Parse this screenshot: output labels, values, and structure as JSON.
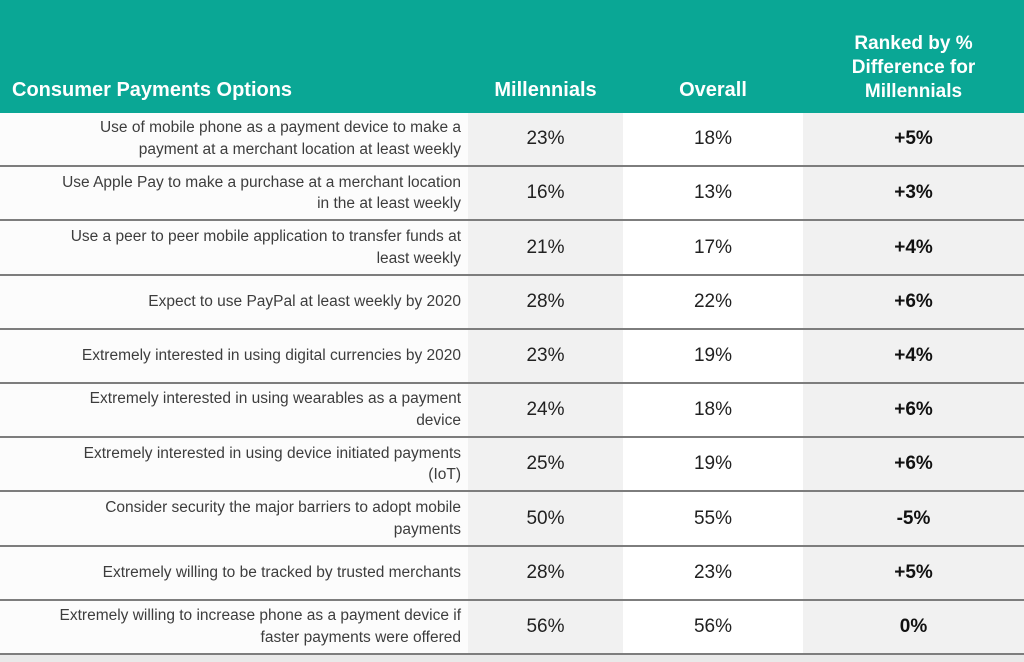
{
  "header": {
    "col1": "Consumer Payments Options",
    "col2": "Millennials",
    "col3": "Overall",
    "col4": "Ranked by % Difference for Millennials"
  },
  "colors": {
    "header_bg": "#0aa795",
    "header_text": "#ffffff",
    "alt_column_bg": "#f1f1f1",
    "separator": "#7d7d7d"
  },
  "chart_data": {
    "type": "table",
    "title": "Consumer Payments Options",
    "columns": [
      "Consumer Payments Options",
      "Millennials",
      "Overall",
      "Ranked by % Difference for Millennials"
    ],
    "rows": [
      {
        "option": "Use of mobile phone as a payment device to make a payment at a merchant location at least weekly",
        "millennials": "23%",
        "overall": "18%",
        "difference": "+5%"
      },
      {
        "option": "Use Apple Pay to make a purchase at a merchant location in the at least weekly",
        "millennials": "16%",
        "overall": "13%",
        "difference": "+3%"
      },
      {
        "option": "Use a peer to peer mobile application to transfer funds at least weekly",
        "millennials": "21%",
        "overall": "17%",
        "difference": "+4%"
      },
      {
        "option": "Expect to use PayPal at least weekly by 2020",
        "millennials": "28%",
        "overall": "22%",
        "difference": "+6%"
      },
      {
        "option": "Extremely interested in using digital currencies by 2020",
        "millennials": "23%",
        "overall": "19%",
        "difference": "+4%"
      },
      {
        "option": "Extremely interested in using wearables as a payment device",
        "millennials": "24%",
        "overall": "18%",
        "difference": "+6%"
      },
      {
        "option": "Extremely interested in using device initiated payments (IoT)",
        "millennials": "25%",
        "overall": "19%",
        "difference": "+6%"
      },
      {
        "option": "Consider security the major barriers to adopt mobile payments",
        "millennials": "50%",
        "overall": "55%",
        "difference": "-5%"
      },
      {
        "option": "Extremely willing to be tracked by trusted merchants",
        "millennials": "28%",
        "overall": "23%",
        "difference": "+5%"
      },
      {
        "option": "Extremely willing to increase phone as a payment device if faster payments were offered",
        "millennials": "56%",
        "overall": "56%",
        "difference": "0%"
      }
    ]
  }
}
